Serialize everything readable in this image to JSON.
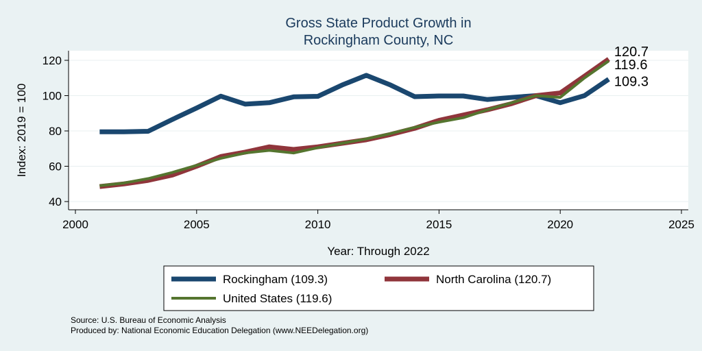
{
  "chart_data": {
    "type": "line",
    "title": [
      "Gross State Product Growth in",
      "Rockingham County, NC"
    ],
    "xlabel": "Year: Through 2022",
    "ylabel": "Index: 2019 = 100",
    "xlim": [
      2000,
      2025
    ],
    "ylim": [
      40,
      120
    ],
    "xticks": [
      "2000",
      "2005",
      "2010",
      "2015",
      "2020",
      "2025"
    ],
    "yticks": [
      "40",
      "60",
      "80",
      "100",
      "120"
    ],
    "x": [
      2001,
      2002,
      2003,
      2004,
      2005,
      2006,
      2007,
      2008,
      2009,
      2010,
      2011,
      2012,
      2013,
      2014,
      2015,
      2016,
      2017,
      2018,
      2019,
      2020,
      2021,
      2022
    ],
    "series": [
      {
        "name": "Rockingham",
        "legend_label": "Rockingham  (109.3)",
        "end_label": "109.3",
        "color": "#1a476f",
        "values": [
          79.5,
          79.5,
          79.8,
          86.5,
          93.0,
          99.7,
          95.2,
          96.0,
          99.3,
          99.6,
          106.0,
          111.5,
          106.0,
          99.4,
          99.8,
          99.8,
          97.8,
          99.0,
          100.0,
          96.0,
          100.0,
          109.3
        ]
      },
      {
        "name": "North Carolina",
        "legend_label": "North Carolina (120.7)",
        "end_label": "120.7",
        "color": "#90353b",
        "values": [
          48.5,
          50.0,
          52.0,
          55.0,
          60.0,
          65.5,
          68.0,
          71.0,
          69.5,
          71.0,
          73.0,
          75.0,
          78.0,
          81.5,
          86.0,
          89.0,
          92.0,
          95.5,
          100.0,
          101.5,
          111.0,
          120.7
        ]
      },
      {
        "name": "United States",
        "legend_label": "United States (119.6)",
        "end_label": "119.6",
        "color": "#55752f",
        "values": [
          49.0,
          50.5,
          53.0,
          56.5,
          60.5,
          64.5,
          67.5,
          69.0,
          67.5,
          70.5,
          73.0,
          75.5,
          78.5,
          82.0,
          85.0,
          87.5,
          92.0,
          96.0,
          100.0,
          99.0,
          110.0,
          119.6
        ]
      }
    ]
  },
  "footer": {
    "source": "Source: U.S. Bureau of Economic Analysis",
    "produced_by": "Produced by: National Economic Education Delegation (www.NEEDelegation.org)"
  }
}
